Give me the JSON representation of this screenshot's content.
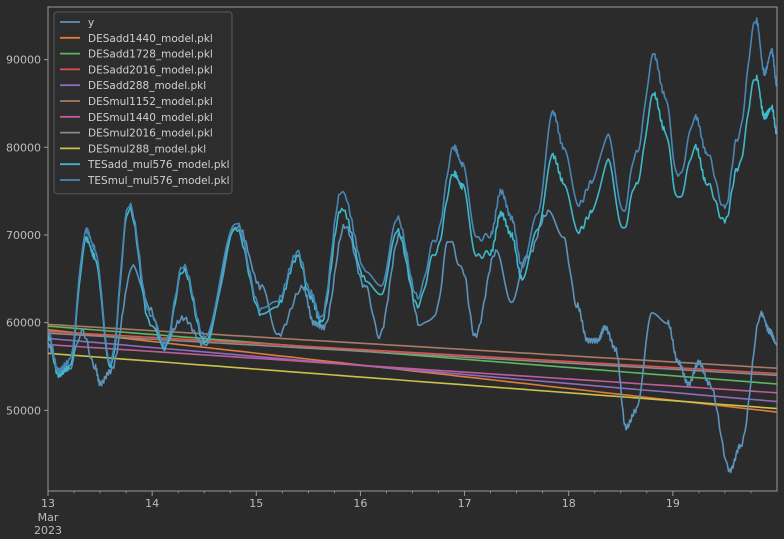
{
  "chart_data": {
    "type": "line",
    "x_ticks": [
      {
        "day": 13,
        "label": "13",
        "sub": [
          "Mar",
          "2023"
        ]
      },
      {
        "day": 14,
        "label": "14"
      },
      {
        "day": 15,
        "label": "15"
      },
      {
        "day": 16,
        "label": "16"
      },
      {
        "day": 17,
        "label": "17"
      },
      {
        "day": 18,
        "label": "18"
      },
      {
        "day": 19,
        "label": "19"
      }
    ],
    "xlim": [
      13,
      20
    ],
    "y_ticks": [
      50000,
      60000,
      70000,
      80000,
      90000
    ],
    "ylim": [
      40800,
      96000
    ],
    "legend_position": "top-left",
    "series": [
      {
        "name": "y",
        "color": "#5b93bb",
        "kind": "wave",
        "values": [
          [
            13.0,
            57500
          ],
          [
            13.1,
            54500
          ],
          [
            13.2,
            54800
          ],
          [
            13.33,
            59000
          ],
          [
            13.45,
            55000
          ],
          [
            13.5,
            53000
          ],
          [
            13.6,
            54500
          ],
          [
            13.82,
            66500
          ],
          [
            13.98,
            61500
          ],
          [
            14.1,
            57500
          ],
          [
            14.3,
            60500
          ],
          [
            14.5,
            57500
          ],
          [
            14.82,
            71000
          ],
          [
            15.05,
            64000
          ],
          [
            15.2,
            58500
          ],
          [
            15.45,
            64000
          ],
          [
            15.55,
            60000
          ],
          [
            15.65,
            59500
          ],
          [
            15.85,
            71000
          ],
          [
            16.05,
            64000
          ],
          [
            16.18,
            58500
          ],
          [
            16.38,
            70000
          ],
          [
            16.58,
            59500
          ],
          [
            16.72,
            61000
          ],
          [
            16.85,
            69500
          ],
          [
            16.98,
            66000
          ],
          [
            17.1,
            58500
          ],
          [
            17.3,
            68000
          ],
          [
            17.45,
            62000
          ],
          [
            17.6,
            67500
          ],
          [
            17.8,
            72500
          ],
          [
            17.95,
            69500
          ],
          [
            18.08,
            62000
          ],
          [
            18.18,
            58000
          ],
          [
            18.28,
            58000
          ],
          [
            18.35,
            59500
          ],
          [
            18.45,
            57000
          ],
          [
            18.55,
            48000
          ],
          [
            18.65,
            50000
          ],
          [
            18.8,
            61000
          ],
          [
            18.95,
            60000
          ],
          [
            19.05,
            55500
          ],
          [
            19.15,
            53000
          ],
          [
            19.25,
            55500
          ],
          [
            19.35,
            53000
          ],
          [
            19.55,
            43200
          ],
          [
            19.65,
            46000
          ],
          [
            19.85,
            61000
          ],
          [
            19.93,
            59000
          ],
          [
            20.0,
            57500
          ]
        ]
      },
      {
        "name": "DESadd1440_model.pkl",
        "color": "#e07b39",
        "kind": "linear",
        "values": [
          [
            13.0,
            59200
          ],
          [
            20.0,
            49800
          ]
        ]
      },
      {
        "name": "DESadd1728_model.pkl",
        "color": "#5cb85c",
        "kind": "linear",
        "values": [
          [
            13.0,
            59600
          ],
          [
            20.0,
            53000
          ]
        ]
      },
      {
        "name": "DESadd2016_model.pkl",
        "color": "#d9534f",
        "kind": "linear",
        "values": [
          [
            13.0,
            59000
          ],
          [
            20.0,
            54200
          ]
        ]
      },
      {
        "name": "DESadd288_model.pkl",
        "color": "#8e6bbf",
        "kind": "linear",
        "values": [
          [
            13.0,
            58200
          ],
          [
            20.0,
            51000
          ]
        ]
      },
      {
        "name": "DESmul1152_model.pkl",
        "color": "#a87b62",
        "kind": "linear",
        "values": [
          [
            13.0,
            59800
          ],
          [
            20.0,
            54800
          ]
        ]
      },
      {
        "name": "DESmul1440_model.pkl",
        "color": "#c05b9e",
        "kind": "linear",
        "values": [
          [
            13.0,
            57500
          ],
          [
            20.0,
            52000
          ]
        ]
      },
      {
        "name": "DESmul2016_model.pkl",
        "color": "#8a8a8a",
        "kind": "linear",
        "values": [
          [
            13.0,
            58800
          ],
          [
            20.0,
            54000
          ]
        ]
      },
      {
        "name": "DESmul288_model.pkl",
        "color": "#c9c24a",
        "kind": "linear",
        "values": [
          [
            13.0,
            56500
          ],
          [
            20.0,
            50200
          ]
        ]
      },
      {
        "name": "TESadd_mul576_model.pkl",
        "color": "#3fb8c8",
        "kind": "wave",
        "values": [
          [
            13.0,
            58500
          ],
          [
            13.1,
            54000
          ],
          [
            13.2,
            54800
          ],
          [
            13.37,
            69500
          ],
          [
            13.45,
            67500
          ],
          [
            13.6,
            55000
          ],
          [
            13.78,
            73000
          ],
          [
            13.98,
            60000
          ],
          [
            14.12,
            57000
          ],
          [
            14.3,
            66000
          ],
          [
            14.5,
            58000
          ],
          [
            14.8,
            70800
          ],
          [
            15.05,
            61000
          ],
          [
            15.2,
            62000
          ],
          [
            15.4,
            67500
          ],
          [
            15.52,
            63000
          ],
          [
            15.62,
            60000
          ],
          [
            15.82,
            73000
          ],
          [
            16.05,
            65000
          ],
          [
            16.2,
            63500
          ],
          [
            16.35,
            70500
          ],
          [
            16.55,
            62000
          ],
          [
            16.72,
            68000
          ],
          [
            16.9,
            77000
          ],
          [
            16.98,
            75500
          ],
          [
            17.12,
            67500
          ],
          [
            17.25,
            68000
          ],
          [
            17.35,
            72500
          ],
          [
            17.45,
            70000
          ],
          [
            17.55,
            65000
          ],
          [
            17.7,
            70500
          ],
          [
            17.85,
            79000
          ],
          [
            17.95,
            76000
          ],
          [
            18.1,
            70500
          ],
          [
            18.22,
            72500
          ],
          [
            18.38,
            78500
          ],
          [
            18.52,
            70500
          ],
          [
            18.65,
            76000
          ],
          [
            18.82,
            86000
          ],
          [
            18.92,
            82000
          ],
          [
            19.05,
            74000
          ],
          [
            19.22,
            80000
          ],
          [
            19.32,
            76000
          ],
          [
            19.5,
            71500
          ],
          [
            19.62,
            77500
          ],
          [
            19.8,
            88000
          ],
          [
            19.88,
            83500
          ],
          [
            19.95,
            84500
          ],
          [
            20.0,
            81500
          ]
        ]
      },
      {
        "name": "TESmul_mul576_model.pkl",
        "color": "#4a86b5",
        "kind": "wave",
        "values": [
          [
            13.0,
            59000
          ],
          [
            13.1,
            54500
          ],
          [
            13.2,
            55500
          ],
          [
            13.37,
            70500
          ],
          [
            13.45,
            68500
          ],
          [
            13.6,
            55500
          ],
          [
            13.78,
            73500
          ],
          [
            13.98,
            61000
          ],
          [
            14.12,
            57500
          ],
          [
            14.3,
            66500
          ],
          [
            14.5,
            58500
          ],
          [
            14.8,
            71500
          ],
          [
            15.05,
            61500
          ],
          [
            15.2,
            62500
          ],
          [
            15.4,
            68000
          ],
          [
            15.52,
            63500
          ],
          [
            15.62,
            60500
          ],
          [
            15.82,
            75000
          ],
          [
            16.05,
            66000
          ],
          [
            16.2,
            64500
          ],
          [
            16.35,
            72000
          ],
          [
            16.55,
            63000
          ],
          [
            16.72,
            69500
          ],
          [
            16.9,
            80000
          ],
          [
            16.98,
            78000
          ],
          [
            17.12,
            69500
          ],
          [
            17.25,
            70000
          ],
          [
            17.35,
            75000
          ],
          [
            17.45,
            72000
          ],
          [
            17.55,
            66500
          ],
          [
            17.7,
            72500
          ],
          [
            17.85,
            84000
          ],
          [
            17.95,
            80000
          ],
          [
            18.1,
            73500
          ],
          [
            18.22,
            76000
          ],
          [
            18.38,
            81500
          ],
          [
            18.52,
            72500
          ],
          [
            18.65,
            79500
          ],
          [
            18.82,
            90500
          ],
          [
            18.92,
            86000
          ],
          [
            19.05,
            76500
          ],
          [
            19.22,
            83500
          ],
          [
            19.32,
            79500
          ],
          [
            19.5,
            73000
          ],
          [
            19.62,
            81000
          ],
          [
            19.8,
            94500
          ],
          [
            19.88,
            88500
          ],
          [
            19.95,
            91000
          ],
          [
            20.0,
            87000
          ]
        ]
      }
    ]
  }
}
